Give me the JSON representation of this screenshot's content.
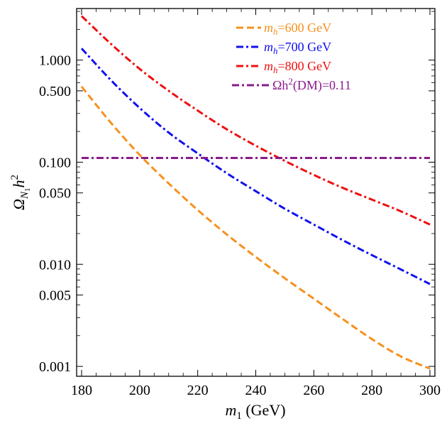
{
  "chart_data": {
    "type": "line",
    "xlabel": {
      "var": "m",
      "sub": "1",
      "unit": " (GeV)"
    },
    "ylabel": {
      "var": "Ω",
      "sub": "N",
      "subsub": "1",
      "var2": "h",
      "sup": "2"
    },
    "xlim": [
      180,
      300
    ],
    "ylim": [
      0.0008,
      3.2
    ],
    "yscale": "log",
    "grid": false,
    "legend_position": "top-right",
    "x_ticks": [
      180,
      200,
      220,
      240,
      260,
      280,
      300
    ],
    "x_tick_labels": [
      "180",
      "200",
      "220",
      "240",
      "260",
      "280",
      "300"
    ],
    "y_ticks": [
      0.001,
      0.005,
      0.01,
      0.05,
      0.1,
      0.5,
      1.0
    ],
    "y_tick_labels": [
      "0.001",
      "0.005",
      "0.010",
      "0.050",
      "0.100",
      "0.500",
      "1.000"
    ],
    "series": [
      {
        "legend": {
          "var": "m",
          "sub": "h",
          "text": "=600 GeV"
        },
        "color": "#F7901E",
        "dash": "10,5",
        "x": [
          180,
          190,
          200,
          210,
          220,
          230,
          240,
          250,
          260,
          270,
          280,
          290,
          300
        ],
        "y": [
          0.55,
          0.245,
          0.118,
          0.062,
          0.034,
          0.0196,
          0.0118,
          0.0073,
          0.0046,
          0.0029,
          0.00185,
          0.00125,
          0.00095
        ]
      },
      {
        "legend": {
          "var": "m",
          "sub": "h",
          "text": "=700 GeV"
        },
        "color": "#1010EE",
        "dash": "10,4,3,4",
        "x": [
          180,
          190,
          200,
          210,
          220,
          230,
          240,
          250,
          260,
          270,
          280,
          290,
          300
        ],
        "y": [
          1.3,
          0.64,
          0.34,
          0.195,
          0.122,
          0.078,
          0.052,
          0.035,
          0.0245,
          0.0172,
          0.0123,
          0.0089,
          0.0064
        ]
      },
      {
        "legend": {
          "var": "m",
          "sub": "h",
          "text": "=800 GeV"
        },
        "color": "#EE1010",
        "dash": "10,4,3,4",
        "x": [
          180,
          190,
          200,
          210,
          220,
          230,
          240,
          250,
          260,
          270,
          280,
          290,
          300
        ],
        "y": [
          2.7,
          1.45,
          0.82,
          0.5,
          0.32,
          0.21,
          0.145,
          0.103,
          0.075,
          0.056,
          0.043,
          0.033,
          0.0245
        ]
      },
      {
        "legend": {
          "var": "Ωh",
          "sup": "2",
          "text": "(DM)=0.11"
        },
        "color": "#8B1A8B",
        "dash": "10,4,3,4",
        "x": [
          180,
          300
        ],
        "y": [
          0.11,
          0.11
        ]
      }
    ]
  }
}
